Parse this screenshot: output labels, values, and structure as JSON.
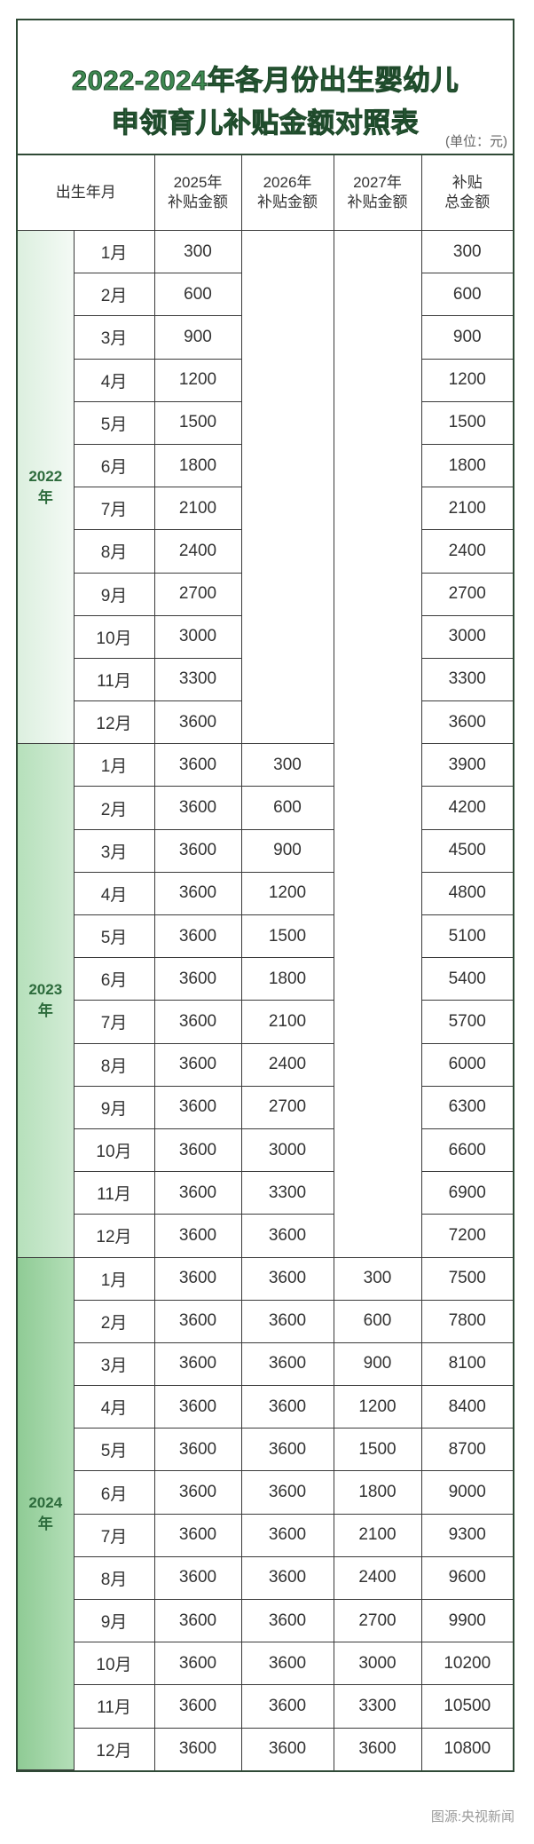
{
  "title": {
    "line1": "2022-2024年各月份出生婴幼儿",
    "line2": "申领育儿补贴金额对照表",
    "unit": "(单位：元)"
  },
  "header": {
    "birth": "出生年月",
    "col2025": [
      "2025年",
      "补贴金额"
    ],
    "col2026": [
      "2026年",
      "补贴金额"
    ],
    "col2027": [
      "2027年",
      "补贴金额"
    ],
    "total": [
      "补贴",
      "总金额"
    ]
  },
  "colors": {
    "title": "#3f8a52",
    "year_2022_bg": "#e6f3e8",
    "year_2023_bg": "#c5e6c9",
    "year_2024_bg": "#9fd3a4",
    "border": "#2f4a36"
  },
  "groups": [
    {
      "year": "2022",
      "suffix": "年",
      "rows": [
        [
          "1月",
          "300",
          "",
          "",
          "300"
        ],
        [
          "2月",
          "600",
          "",
          "",
          "600"
        ],
        [
          "3月",
          "900",
          "",
          "",
          "900"
        ],
        [
          "4月",
          "1200",
          "",
          "",
          "1200"
        ],
        [
          "5月",
          "1500",
          "",
          "",
          "1500"
        ],
        [
          "6月",
          "1800",
          "",
          "",
          "1800"
        ],
        [
          "7月",
          "2100",
          "",
          "",
          "2100"
        ],
        [
          "8月",
          "2400",
          "",
          "",
          "2400"
        ],
        [
          "9月",
          "2700",
          "",
          "",
          "2700"
        ],
        [
          "10月",
          "3000",
          "",
          "",
          "3000"
        ],
        [
          "11月",
          "3300",
          "",
          "",
          "3300"
        ],
        [
          "12月",
          "3600",
          "",
          "",
          "3600"
        ]
      ]
    },
    {
      "year": "2023",
      "suffix": "年",
      "rows": [
        [
          "1月",
          "3600",
          "300",
          "",
          "3900"
        ],
        [
          "2月",
          "3600",
          "600",
          "",
          "4200"
        ],
        [
          "3月",
          "3600",
          "900",
          "",
          "4500"
        ],
        [
          "4月",
          "3600",
          "1200",
          "",
          "4800"
        ],
        [
          "5月",
          "3600",
          "1500",
          "",
          "5100"
        ],
        [
          "6月",
          "3600",
          "1800",
          "",
          "5400"
        ],
        [
          "7月",
          "3600",
          "2100",
          "",
          "5700"
        ],
        [
          "8月",
          "3600",
          "2400",
          "",
          "6000"
        ],
        [
          "9月",
          "3600",
          "2700",
          "",
          "6300"
        ],
        [
          "10月",
          "3600",
          "3000",
          "",
          "6600"
        ],
        [
          "11月",
          "3600",
          "3300",
          "",
          "6900"
        ],
        [
          "12月",
          "3600",
          "3600",
          "",
          "7200"
        ]
      ]
    },
    {
      "year": "2024",
      "suffix": "年",
      "rows": [
        [
          "1月",
          "3600",
          "3600",
          "300",
          "7500"
        ],
        [
          "2月",
          "3600",
          "3600",
          "600",
          "7800"
        ],
        [
          "3月",
          "3600",
          "3600",
          "900",
          "8100"
        ],
        [
          "4月",
          "3600",
          "3600",
          "1200",
          "8400"
        ],
        [
          "5月",
          "3600",
          "3600",
          "1500",
          "8700"
        ],
        [
          "6月",
          "3600",
          "3600",
          "1800",
          "9000"
        ],
        [
          "7月",
          "3600",
          "3600",
          "2100",
          "9300"
        ],
        [
          "8月",
          "3600",
          "3600",
          "2400",
          "9600"
        ],
        [
          "9月",
          "3600",
          "3600",
          "2700",
          "9900"
        ],
        [
          "10月",
          "3600",
          "3600",
          "3000",
          "10200"
        ],
        [
          "11月",
          "3600",
          "3600",
          "3300",
          "10500"
        ],
        [
          "12月",
          "3600",
          "3600",
          "3600",
          "10800"
        ]
      ]
    }
  ],
  "source": "图源:央视新闻"
}
